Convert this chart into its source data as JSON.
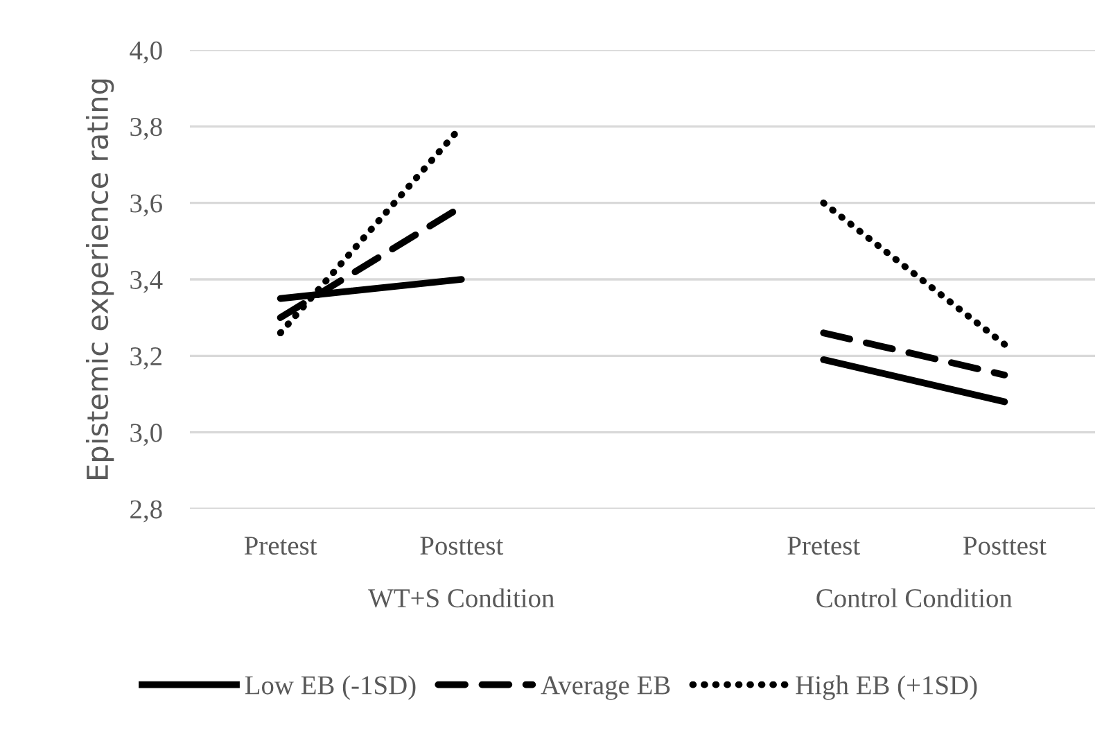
{
  "chart_data": {
    "type": "line",
    "ylabel": "Epistemic experience rating",
    "categories": [
      "Pretest",
      "Posttest",
      null,
      "Pretest",
      "Posttest"
    ],
    "series": [
      {
        "name": "Low EB (-1SD)",
        "color": "#000000",
        "line_style": "solid",
        "values": [
          3.35,
          3.4,
          null,
          3.19,
          3.08
        ]
      },
      {
        "name": "Average EB",
        "color": "#000000",
        "line_style": "dashed",
        "values": [
          3.3,
          3.59,
          null,
          3.26,
          3.15
        ]
      },
      {
        "name": "High EB (+1SD)",
        "color": "#000000",
        "line_style": "dotted",
        "values": [
          3.26,
          3.8,
          null,
          3.6,
          3.23
        ]
      }
    ],
    "annotations": [
      "WT+S Condition",
      "Control Condition"
    ],
    "ylim": [
      2.8,
      4.0
    ],
    "yticks": [
      {
        "value": 2.8,
        "label": "2,8"
      },
      {
        "value": 3.0,
        "label": "3,0"
      },
      {
        "value": 3.2,
        "label": "3,2"
      },
      {
        "value": 3.4,
        "label": "3,4"
      },
      {
        "value": 3.6,
        "label": "3,6"
      },
      {
        "value": 3.8,
        "label": "3,8"
      },
      {
        "value": 4.0,
        "label": "4,0"
      }
    ],
    "grid": "y",
    "legend": "bottom",
    "marker": "none"
  }
}
